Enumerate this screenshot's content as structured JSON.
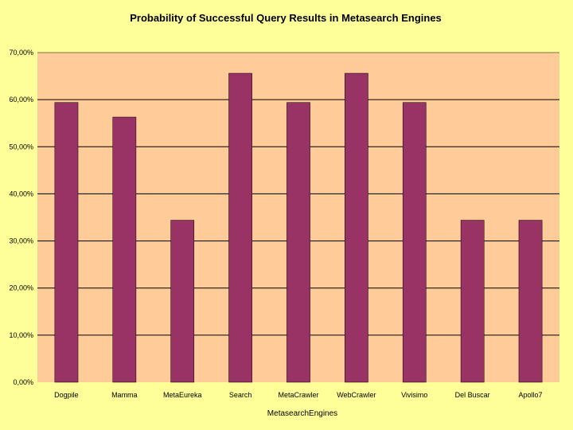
{
  "chart_data": {
    "type": "bar",
    "title": "Probability of Successful Query Results in Metasearch Engines",
    "xlabel": "MetasearchEngines",
    "ylabel": "",
    "categories": [
      "Dogpile",
      "Mamma",
      "MetaEureka",
      "Search",
      "MetaCrawler",
      "WebCrawler",
      "Vivisimo",
      "Del Buscar",
      "Apollo7"
    ],
    "values": [
      59.4,
      56.3,
      34.4,
      65.6,
      59.4,
      65.6,
      59.4,
      34.4,
      34.4
    ],
    "ylim": [
      0,
      70
    ],
    "yticks": [
      0,
      10,
      20,
      30,
      40,
      50,
      60,
      70
    ],
    "ytick_labels": [
      "0,00%",
      "10,00%",
      "20,00%",
      "30,00%",
      "40,00%",
      "50,00%",
      "60,00%",
      "70,00%"
    ],
    "grid": true,
    "colors": {
      "background": "#FFFF99",
      "plot_area": "#FFCC99",
      "bar": "#993366",
      "gridline": "#000000"
    }
  }
}
